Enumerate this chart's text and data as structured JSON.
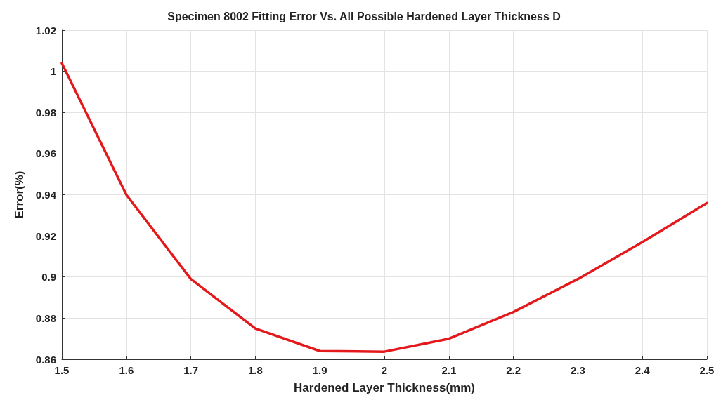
{
  "chart_data": {
    "type": "line",
    "title": "Specimen 8002 Fitting Error Vs. All Possible Hardened Layer Thickness D",
    "xlabel": "Hardened Layer Thickness(mm)",
    "ylabel": "Error(%)",
    "x": [
      1.5,
      1.6,
      1.7,
      1.8,
      1.9,
      2.0,
      2.1,
      2.2,
      2.3,
      2.4,
      2.5
    ],
    "series": [
      {
        "color": "#e3191c",
        "values": [
          1.004,
          0.94,
          0.899,
          0.875,
          0.864,
          0.8637,
          0.87,
          0.883,
          0.899,
          0.917,
          0.936
        ]
      }
    ],
    "xlim": [
      1.5,
      2.5
    ],
    "xticks": [
      1.5,
      1.6,
      1.7,
      1.8,
      1.9,
      2,
      2.1,
      2.2,
      2.3,
      2.4,
      2.5
    ],
    "ylim": [
      0.86,
      1.02
    ],
    "yticks": [
      0.86,
      0.88,
      0.9,
      0.92,
      0.94,
      0.96,
      0.98,
      1,
      1.02
    ],
    "grid": true,
    "marker": "none",
    "line_style": "solid"
  }
}
